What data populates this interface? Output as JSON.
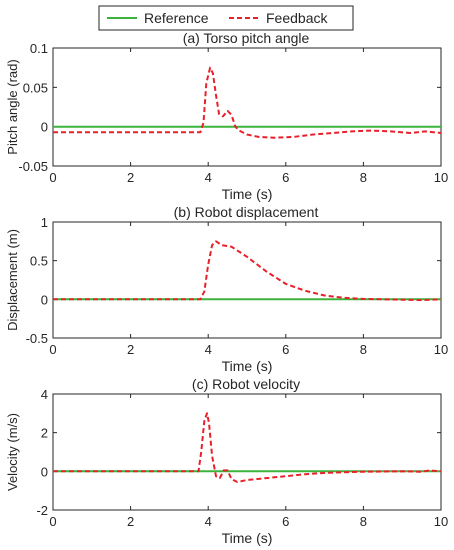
{
  "legend": {
    "entries": [
      {
        "label": "Reference",
        "color": "#3cb43c",
        "style": "solid"
      },
      {
        "label": "Feedback",
        "color": "#e8202a",
        "style": "dashed"
      }
    ]
  },
  "chart_data": [
    {
      "type": "line",
      "title": "(a) Torso pitch angle",
      "xlabel": "Time (s)",
      "ylabel": "Pitch angle (rad)",
      "xlim": [
        0,
        10
      ],
      "ylim": [
        -0.05,
        0.1
      ],
      "xticks": [
        0,
        2,
        4,
        6,
        8,
        10
      ],
      "yticks": [
        -0.05,
        0,
        0.05,
        0.1
      ],
      "xtick_labels": [
        "0",
        "2",
        "4",
        "6",
        "8",
        "10"
      ],
      "ytick_labels": [
        "-0.05",
        "0",
        "0.05",
        "0.1"
      ],
      "series": [
        {
          "name": "Reference",
          "x": [
            0,
            10
          ],
          "y": [
            0,
            0
          ]
        },
        {
          "name": "Feedback",
          "x": [
            0,
            3.8,
            3.88,
            3.95,
            4.05,
            4.12,
            4.2,
            4.28,
            4.38,
            4.5,
            4.6,
            4.7,
            4.8,
            5.0,
            5.3,
            5.7,
            6.2,
            6.7,
            7.2,
            7.7,
            8.2,
            8.7,
            9.2,
            9.6,
            10
          ],
          "y": [
            -0.007,
            -0.007,
            0.005,
            0.055,
            0.075,
            0.068,
            0.04,
            0.016,
            0.013,
            0.02,
            0.015,
            0.0,
            -0.005,
            -0.01,
            -0.013,
            -0.014,
            -0.013,
            -0.01,
            -0.008,
            -0.006,
            -0.005,
            -0.006,
            -0.008,
            -0.006,
            -0.008
          ]
        }
      ]
    },
    {
      "type": "line",
      "title": "(b) Robot displacement",
      "xlabel": "Time (s)",
      "ylabel": "Displacement (m)",
      "xlim": [
        0,
        10
      ],
      "ylim": [
        -0.5,
        1
      ],
      "xticks": [
        0,
        2,
        4,
        6,
        8,
        10
      ],
      "yticks": [
        -0.5,
        0,
        0.5,
        1
      ],
      "xtick_labels": [
        "0",
        "2",
        "4",
        "6",
        "8",
        "10"
      ],
      "ytick_labels": [
        "-0.5",
        "0",
        "0.5",
        "1"
      ],
      "series": [
        {
          "name": "Reference",
          "x": [
            0,
            10
          ],
          "y": [
            0,
            0
          ]
        },
        {
          "name": "Feedback",
          "x": [
            0,
            3.8,
            3.9,
            4.0,
            4.1,
            4.2,
            4.35,
            4.6,
            5.0,
            5.5,
            6.0,
            6.5,
            7.0,
            7.5,
            8.0,
            8.5,
            9.0,
            9.5,
            10
          ],
          "y": [
            0,
            0,
            0.1,
            0.45,
            0.7,
            0.75,
            0.7,
            0.68,
            0.55,
            0.36,
            0.2,
            0.11,
            0.05,
            0.02,
            0.005,
            0.0,
            -0.005,
            -0.01,
            0.0
          ]
        }
      ]
    },
    {
      "type": "line",
      "title": "(c) Robot velocity",
      "xlabel": "Time (s)",
      "ylabel": "Velocity (m/s)",
      "xlim": [
        0,
        10
      ],
      "ylim": [
        -2,
        4
      ],
      "xticks": [
        0,
        2,
        4,
        6,
        8,
        10
      ],
      "yticks": [
        -2,
        0,
        2,
        4
      ],
      "xtick_labels": [
        "0",
        "2",
        "4",
        "6",
        "8",
        "10"
      ],
      "ytick_labels": [
        "-2",
        "0",
        "2",
        "4"
      ],
      "series": [
        {
          "name": "Reference",
          "x": [
            0,
            10
          ],
          "y": [
            0,
            0
          ]
        },
        {
          "name": "Feedback",
          "x": [
            0,
            3.75,
            3.82,
            3.9,
            3.97,
            4.02,
            4.1,
            4.2,
            4.3,
            4.4,
            4.5,
            4.6,
            4.75,
            5.0,
            5.5,
            6.0,
            6.5,
            7.0,
            7.5,
            8.0,
            8.5,
            9.0,
            9.5,
            9.7,
            10
          ],
          "y": [
            0,
            0,
            1.0,
            2.6,
            3.0,
            2.5,
            0.8,
            -0.25,
            -0.35,
            0.05,
            0.05,
            -0.4,
            -0.55,
            -0.45,
            -0.35,
            -0.25,
            -0.15,
            -0.08,
            -0.05,
            -0.02,
            -0.01,
            0.0,
            -0.02,
            0.05,
            0.0
          ]
        }
      ]
    }
  ]
}
